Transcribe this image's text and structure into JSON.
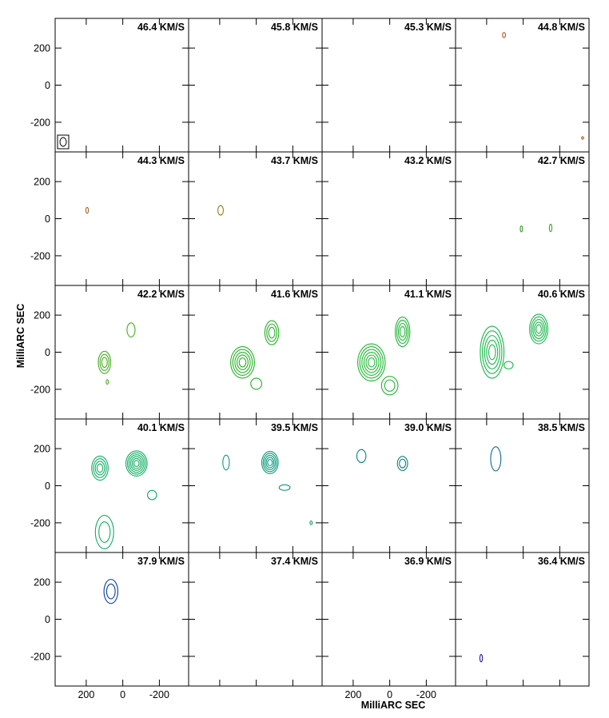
{
  "chart_data": {
    "type": "contour",
    "xlabel": "MilliARC SEC",
    "ylabel": "MilliARC SEC",
    "xlim": [
      370,
      -360
    ],
    "ylim": [
      -360,
      360
    ],
    "xticks": [
      200,
      0,
      -200
    ],
    "yticks": [
      200,
      0,
      -200
    ],
    "xtick_labels": [
      "200",
      "0",
      "-200"
    ],
    "ytick_labels": [
      "200",
      "0",
      "-200"
    ],
    "grid": "4 columns x 5 rows",
    "panels": [
      {
        "label": "46.4 KM/S",
        "color": "#000000",
        "beam": true,
        "features": []
      },
      {
        "label": "45.8 KM/S",
        "color": "#000000",
        "features": []
      },
      {
        "label": "45.3 KM/S",
        "color": "#000000",
        "features": []
      },
      {
        "label": "44.8 KM/S",
        "color": "#b8541a",
        "features": [
          {
            "x": 105,
            "y": 270,
            "rx": 8,
            "ry": 14,
            "levels": 1
          },
          {
            "x": -325,
            "y": -285,
            "rx": 4,
            "ry": 6,
            "levels": 1
          }
        ]
      },
      {
        "label": "44.3 KM/S",
        "color": "#a5671c",
        "features": [
          {
            "x": 195,
            "y": 45,
            "rx": 7,
            "ry": 16,
            "levels": 1
          }
        ]
      },
      {
        "label": "43.7 KM/S",
        "color": "#9c7a10",
        "features": [
          {
            "x": 195,
            "y": 45,
            "rx": 15,
            "ry": 26,
            "levels": 1
          }
        ]
      },
      {
        "label": "43.2 KM/S",
        "color": "#000000",
        "features": []
      },
      {
        "label": "42.7 KM/S",
        "color": "#3aa02a",
        "features": [
          {
            "x": 10,
            "y": -55,
            "rx": 6,
            "ry": 16,
            "levels": 1
          },
          {
            "x": -150,
            "y": -50,
            "rx": 7,
            "ry": 20,
            "levels": 1
          }
        ]
      },
      {
        "label": "42.2 KM/S",
        "color": "#45ad1e",
        "features": [
          {
            "x": 100,
            "y": -55,
            "rx": 34,
            "ry": 60,
            "levels": 3
          },
          {
            "x": -45,
            "y": 120,
            "rx": 22,
            "ry": 38,
            "levels": 1
          },
          {
            "x": 85,
            "y": -160,
            "rx": 6,
            "ry": 12,
            "levels": 1
          }
        ]
      },
      {
        "label": "41.6 KM/S",
        "color": "#22b422",
        "features": [
          {
            "x": 75,
            "y": -55,
            "rx": 65,
            "ry": 85,
            "levels": 5
          },
          {
            "x": -85,
            "y": 105,
            "rx": 38,
            "ry": 65,
            "levels": 3
          },
          {
            "x": 0,
            "y": -170,
            "rx": 30,
            "ry": 30,
            "levels": 1
          }
        ]
      },
      {
        "label": "41.1 KM/S",
        "color": "#1eb832",
        "features": [
          {
            "x": 100,
            "y": -55,
            "rx": 75,
            "ry": 100,
            "levels": 6
          },
          {
            "x": -70,
            "y": 110,
            "rx": 40,
            "ry": 80,
            "levels": 4
          },
          {
            "x": 0,
            "y": -180,
            "rx": 45,
            "ry": 50,
            "levels": 2
          }
        ]
      },
      {
        "label": "40.6 KM/S",
        "color": "#17b84a",
        "features": [
          {
            "x": 170,
            "y": 0,
            "rx": 65,
            "ry": 140,
            "levels": 5
          },
          {
            "x": -85,
            "y": 125,
            "rx": 50,
            "ry": 80,
            "levels": 5
          },
          {
            "x": 80,
            "y": -70,
            "rx": 25,
            "ry": 20,
            "levels": 1
          }
        ]
      },
      {
        "label": "40.1 KM/S",
        "color": "#0fae62",
        "features": [
          {
            "x": 125,
            "y": 95,
            "rx": 45,
            "ry": 65,
            "levels": 4
          },
          {
            "x": -75,
            "y": 120,
            "rx": 58,
            "ry": 68,
            "levels": 6
          },
          {
            "x": 100,
            "y": -250,
            "rx": 50,
            "ry": 90,
            "levels": 2
          },
          {
            "x": -160,
            "y": -50,
            "rx": 25,
            "ry": 25,
            "levels": 1
          }
        ]
      },
      {
        "label": "39.5 KM/S",
        "color": "#0a9a7c",
        "features": [
          {
            "x": 165,
            "y": 125,
            "rx": 18,
            "ry": 40,
            "levels": 1
          },
          {
            "x": -75,
            "y": 125,
            "rx": 45,
            "ry": 60,
            "levels": 5
          },
          {
            "x": -155,
            "y": -10,
            "rx": 30,
            "ry": 15,
            "levels": 1
          },
          {
            "x": -300,
            "y": -200,
            "rx": 6,
            "ry": 10,
            "levels": 1
          }
        ]
      },
      {
        "label": "39.0 KM/S",
        "color": "#0a7f8c",
        "features": [
          {
            "x": 155,
            "y": 160,
            "rx": 25,
            "ry": 35,
            "levels": 1
          },
          {
            "x": -70,
            "y": 120,
            "rx": 28,
            "ry": 38,
            "levels": 2
          }
        ]
      },
      {
        "label": "38.5 KM/S",
        "color": "#0a6a98",
        "features": [
          {
            "x": 150,
            "y": 145,
            "rx": 28,
            "ry": 65,
            "levels": 1
          }
        ]
      },
      {
        "label": "37.9 KM/S",
        "color": "#0b3fa0",
        "features": [
          {
            "x": 65,
            "y": 150,
            "rx": 38,
            "ry": 65,
            "levels": 2
          }
        ]
      },
      {
        "label": "37.4 KM/S",
        "color": "#000000",
        "features": []
      },
      {
        "label": "36.9 KM/S",
        "color": "#000000",
        "features": []
      },
      {
        "label": "36.4 KM/S",
        "color": "#2a1aa0",
        "features": [
          {
            "x": 230,
            "y": -210,
            "rx": 7,
            "ry": 20,
            "levels": 1
          }
        ]
      }
    ]
  }
}
